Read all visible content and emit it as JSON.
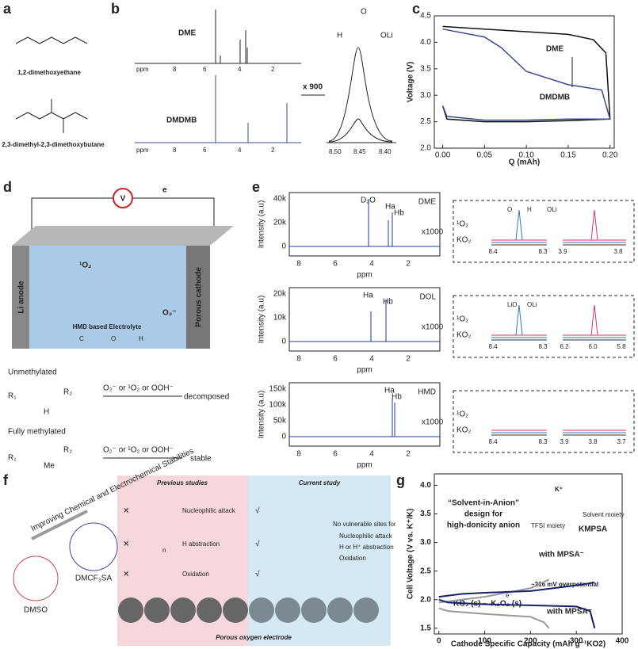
{
  "panels": {
    "a": {
      "label": "a",
      "molecule_1": "1,2-dimethoxyethane",
      "molecule_2": "2,3-dimethyl-2,3-dimethoxybutane"
    },
    "b": {
      "label": "b",
      "spectrum_1": "DME",
      "spectrum_2": "DMDMB",
      "axis_ticks": [
        "ppm",
        "8",
        "6",
        "4",
        "2"
      ],
      "inset_factor": "x 900",
      "inset_ticks": [
        "8.50",
        "8.45",
        "8.40"
      ],
      "formate_atoms": [
        "O",
        "H",
        "OLi"
      ]
    },
    "c": {
      "label": "c"
    },
    "d": {
      "label": "d",
      "voltmeter": "V",
      "electron": "e",
      "anode": "Li anode",
      "cathode": "Porous cathode",
      "singlet_oxygen": "¹O₂",
      "superoxide": "O₂⁻",
      "electrolyte": "HMD based Electrolyte",
      "atoms": [
        "C",
        "O",
        "H"
      ],
      "case_1": "Unmethylated",
      "case_2": "Fully methylated",
      "attack": "O₂⁻ or ¹O₂ or OOH⁻",
      "result_1": "decomposed",
      "result_2": "stable",
      "groups": [
        "R₁",
        "R₂",
        "H",
        "Me"
      ]
    },
    "e": {
      "label": "e",
      "y_axis": "Intensity (a.u)",
      "x_axis": "ppm",
      "factor": "x1000",
      "singlet": "¹O₂",
      "ko2": "KO₂",
      "rows": [
        {
          "name": "DME",
          "yticks": [
            "0",
            "20k",
            "40k"
          ],
          "xticks": [
            "8",
            "6",
            "4",
            "2"
          ],
          "peaks": [
            "D₂O",
            "Ha",
            "Hb"
          ],
          "inset_ticks": [
            "8.4",
            "8.3",
            "3.9",
            "3.8"
          ],
          "products": [
            "O",
            "H",
            "OLi"
          ]
        },
        {
          "name": "DOL",
          "yticks": [
            "0",
            "10k",
            "20k"
          ],
          "xticks": [
            "8",
            "6",
            "4",
            "2"
          ],
          "peaks": [
            "Ha",
            "Hb"
          ],
          "inset_ticks": [
            "8.4",
            "8.3",
            "6.2",
            "6.0",
            "5.8"
          ],
          "products": [
            "LiO",
            "OLi"
          ]
        },
        {
          "name": "HMD",
          "yticks": [
            "0",
            "50k",
            "100k",
            "150k"
          ],
          "xticks": [
            "8",
            "6",
            "4",
            "2"
          ],
          "peaks": [
            "Ha",
            "Hb"
          ],
          "inset_ticks": [
            "8.4",
            "8.3",
            "3.9",
            "3.8",
            "3.7"
          ]
        }
      ]
    },
    "f": {
      "label": "f",
      "previous": "Previous studies",
      "current": "Current study",
      "prev_items": [
        "Nucleophilic attack",
        "H abstraction",
        "Oxidation"
      ],
      "no_sites": "No vulnerable sites for",
      "curr_items": [
        "Nucleophilic attack",
        "H or H⁺ abstraction",
        "Oxidation"
      ],
      "electrode": "Porous oxygen electrode",
      "arrow": "Improving Chemical and Electrochemical Stabilities",
      "solvents": [
        "DMSO",
        "DMCF₃SA"
      ],
      "n": "n"
    },
    "g": {
      "label": "g",
      "headline": "“Solvent-in-Anion”",
      "subline_1": "design for",
      "subline_2": "high-donicity anion",
      "salt": "KMPSA",
      "moiety_1": "TFSI moiety",
      "moiety_2": "Solvent moiety",
      "with_1": "with MPSA⁻",
      "with_2": "with MPSA⁻",
      "overpotential": "~216 mV overpotential",
      "reaction": "KO₂ (s)⇔ K₂O₂ (s)",
      "electron": "e⁻",
      "cation": "K⁺"
    }
  },
  "chart_data": [
    {
      "type": "line",
      "xlabel": "Q (mAh)",
      "ylabel": "Voltage (V)",
      "xlim": [
        -0.01,
        0.205
      ],
      "ylim": [
        2.0,
        4.5
      ],
      "xticks": [
        {
          "value": 0,
          "label": "0.00"
        },
        {
          "value": 0.05,
          "label": "0.05"
        },
        {
          "value": 0.1,
          "label": "0.10"
        },
        {
          "value": 0.15,
          "label": "0.15"
        },
        {
          "value": 0.2,
          "label": "0.20"
        }
      ],
      "yticks": [
        {
          "value": 2,
          "label": "2.0"
        },
        2.5,
        {
          "value": 3,
          "label": "3.0"
        },
        3.5,
        {
          "value": 4,
          "label": "4.0"
        },
        4.5
      ],
      "annotations": [
        "DME",
        "DMDMB"
      ],
      "series": [
        {
          "name": "DME",
          "color": "#111111",
          "x": [
            0,
            0.05,
            0.1,
            0.15,
            0.18,
            0.195,
            0.2,
            0.15,
            0.1,
            0.05,
            0.005,
            0
          ],
          "values": [
            4.3,
            4.25,
            4.2,
            4.15,
            4.05,
            3.8,
            2.55,
            2.52,
            2.5,
            2.5,
            2.55,
            2.8
          ]
        },
        {
          "name": "DMDMB",
          "color": "#3a4a8a",
          "x": [
            0,
            0.05,
            0.07,
            0.1,
            0.15,
            0.19,
            0.2,
            0.15,
            0.1,
            0.05,
            0.005,
            0
          ],
          "values": [
            4.25,
            4.1,
            3.9,
            3.45,
            3.2,
            3.1,
            2.55,
            2.55,
            2.53,
            2.53,
            2.6,
            2.8
          ]
        }
      ]
    },
    {
      "type": "line",
      "xlabel": "Cathode Specific Capacity (mAh g⁻¹KO2)",
      "ylabel": "Cell Voltage (V vs. K⁺/K)",
      "xlim": [
        -10,
        400
      ],
      "ylim": [
        1.4,
        4.2
      ],
      "xticks": [
        0,
        100,
        200,
        300,
        400
      ],
      "yticks": [
        1.5,
        {
          "value": 2,
          "label": "2.0"
        },
        2.5,
        {
          "value": 3,
          "label": "3.0"
        },
        3.5,
        {
          "value": 4,
          "label": "4.0"
        }
      ],
      "series": [
        {
          "color": "#999999",
          "x": [
            0,
            20,
            100,
            200,
            230,
            240
          ],
          "values": [
            1.85,
            1.8,
            1.75,
            1.7,
            1.6,
            1.5
          ]
        },
        {
          "color": "#999999",
          "x": [
            0,
            100,
            200,
            240
          ],
          "values": [
            1.95,
            2.05,
            2.2,
            2.35
          ]
        },
        {
          "color": "#14206b",
          "x": [
            0,
            20,
            100,
            200,
            300,
            330,
            340
          ],
          "values": [
            2.0,
            1.95,
            1.92,
            1.9,
            1.88,
            1.8,
            1.5
          ]
        },
        {
          "color": "#14206b",
          "x": [
            0,
            50,
            100,
            200,
            300,
            340
          ],
          "values": [
            2.05,
            2.1,
            2.12,
            2.15,
            2.25,
            2.3
          ]
        }
      ]
    }
  ]
}
